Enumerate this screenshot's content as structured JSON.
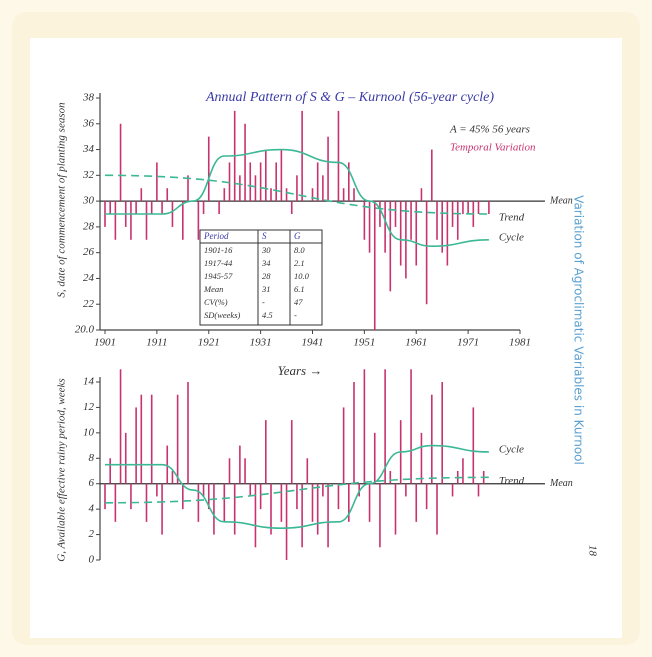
{
  "side_label": "Variation of Agroclimatic Variables in Kurnool",
  "page_number": "18",
  "x_label": "Years →",
  "table": {
    "header": [
      "Period",
      "S",
      "G"
    ],
    "rows": [
      [
        "1901-16",
        "30",
        "8.0"
      ],
      [
        "1917-44",
        "34",
        "2.1"
      ],
      [
        "1945-57",
        "28",
        "10.0"
      ],
      [
        "Mean",
        "31",
        "6.1"
      ],
      [
        "CV(%)",
        "-",
        "47"
      ],
      [
        "SD(weeks)",
        "4.5",
        "-"
      ]
    ]
  },
  "chart_data": [
    {
      "type": "bar",
      "title": "Annual Pattern of S & G – Kurnool (56-year cycle)",
      "annotations": [
        "A = 45% 56 years",
        "Temporal Variation"
      ],
      "y_label": "S, date of commencement of planting season",
      "mean": 30,
      "mean_label": "Mean",
      "color": "#c8326e",
      "curve_color": "#3cb896",
      "xlim": [
        1901,
        1981
      ],
      "xticks": [
        1901,
        1911,
        1921,
        1931,
        1941,
        1951,
        1961,
        1971,
        1981
      ],
      "ylim": [
        20,
        38
      ],
      "yticks": [
        {
          "value": 20,
          "label": "20.0"
        },
        22,
        24,
        26,
        28,
        30,
        32,
        34,
        36,
        38
      ],
      "x": [
        1901,
        1902,
        1903,
        1904,
        1905,
        1906,
        1907,
        1908,
        1909,
        1910,
        1911,
        1912,
        1913,
        1914,
        1915,
        1916,
        1917,
        1918,
        1919,
        1920,
        1921,
        1922,
        1923,
        1924,
        1925,
        1926,
        1927,
        1928,
        1929,
        1930,
        1931,
        1932,
        1933,
        1934,
        1935,
        1936,
        1937,
        1938,
        1939,
        1940,
        1941,
        1942,
        1943,
        1944,
        1945,
        1946,
        1947,
        1948,
        1949,
        1950,
        1951,
        1952,
        1953,
        1954,
        1955,
        1956,
        1957,
        1958,
        1959,
        1960,
        1961,
        1962,
        1963,
        1964,
        1965,
        1966,
        1967,
        1968,
        1969,
        1970,
        1971,
        1972,
        1973,
        1974,
        1975
      ],
      "values": [
        28,
        29,
        27,
        36,
        28,
        27,
        29,
        31,
        27,
        29,
        33,
        29,
        31,
        28,
        30,
        27,
        32,
        30,
        27,
        29,
        35,
        30,
        29,
        31,
        33,
        37,
        32,
        36,
        33,
        32,
        33,
        34,
        31,
        33,
        34,
        31,
        29,
        32,
        37,
        30,
        31,
        33,
        32,
        35,
        30,
        37,
        31,
        33,
        31,
        30,
        27,
        26,
        20,
        28,
        26,
        23,
        28,
        25,
        24,
        27,
        25,
        31,
        22,
        34,
        27,
        26,
        25,
        28,
        27,
        29,
        29,
        28,
        29,
        30,
        29
      ],
      "lines": [
        {
          "name": "Cycle",
          "dash": false,
          "x": [
            1901,
            1912,
            1918,
            1924,
            1935,
            1946,
            1952,
            1958,
            1964,
            1975
          ],
          "values": [
            29,
            29,
            30,
            33.5,
            34,
            33,
            30,
            27,
            26.5,
            27
          ]
        },
        {
          "name": "Trend",
          "dash": true,
          "x": [
            1901,
            1975
          ],
          "values": [
            32,
            29
          ]
        }
      ]
    },
    {
      "type": "bar",
      "y_label": "G, Available effective rainy period, weeks",
      "mean": 6,
      "mean_label": "Mean",
      "color": "#c8326e",
      "curve_color": "#3cb896",
      "xlim": [
        1901,
        1981
      ],
      "ylim": [
        0,
        14
      ],
      "yticks": [
        0,
        2,
        4,
        6,
        8,
        10,
        12,
        14
      ],
      "x": [
        1901,
        1902,
        1903,
        1904,
        1905,
        1906,
        1907,
        1908,
        1909,
        1910,
        1911,
        1912,
        1913,
        1914,
        1915,
        1916,
        1917,
        1918,
        1919,
        1920,
        1921,
        1922,
        1923,
        1924,
        1925,
        1926,
        1927,
        1928,
        1929,
        1930,
        1931,
        1932,
        1933,
        1934,
        1935,
        1936,
        1937,
        1938,
        1939,
        1940,
        1941,
        1942,
        1943,
        1944,
        1945,
        1946,
        1947,
        1948,
        1949,
        1950,
        1951,
        1952,
        1953,
        1954,
        1955,
        1956,
        1957,
        1958,
        1959,
        1960,
        1961,
        1962,
        1963,
        1964,
        1965,
        1966,
        1967,
        1968,
        1969,
        1970,
        1971,
        1972,
        1973,
        1974,
        1975
      ],
      "values": [
        4,
        8,
        3,
        15,
        10,
        4,
        12,
        13,
        3,
        13,
        5,
        2,
        9,
        7,
        13,
        4,
        14,
        6,
        3,
        5,
        4,
        2,
        6,
        3,
        8,
        2,
        9,
        8,
        5,
        1,
        4,
        11,
        2,
        6,
        3,
        0,
        11,
        4,
        1,
        8,
        3,
        2,
        5,
        1,
        6,
        4,
        12,
        3,
        14,
        5,
        15,
        3,
        10,
        1,
        15,
        7,
        2,
        11,
        5,
        15,
        3,
        10,
        4,
        13,
        2,
        14,
        6,
        5,
        7,
        8,
        6,
        12,
        5,
        7,
        6
      ],
      "lines": [
        {
          "name": "Cycle",
          "dash": false,
          "x": [
            1901,
            1912,
            1918,
            1924,
            1935,
            1946,
            1952,
            1958,
            1964,
            1975
          ],
          "values": [
            7.5,
            7.5,
            5.5,
            3,
            2.5,
            3,
            6,
            8.5,
            9,
            8.5
          ]
        },
        {
          "name": "Trend",
          "dash": true,
          "x": [
            1901,
            1975
          ],
          "values": [
            4.5,
            6.5
          ]
        }
      ]
    }
  ]
}
